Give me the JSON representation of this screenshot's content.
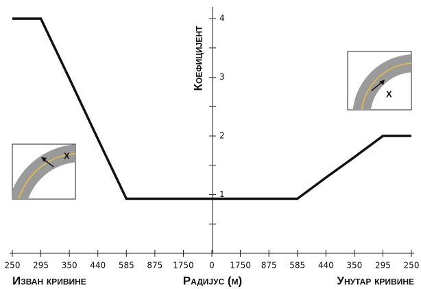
{
  "chart_data": {
    "type": "line",
    "y_label": "Коефицијент",
    "x_label": "Радијус (м)",
    "left_label": "Изван кривине",
    "right_label": "Унутар кривине",
    "categories": [
      "250",
      "295",
      "350",
      "440",
      "585",
      "875",
      "1750",
      "0",
      "1750",
      "875",
      "585",
      "440",
      "350",
      "295",
      "250"
    ],
    "series": [
      {
        "name": "Коефицијент",
        "color": "#111111",
        "values": [
          4,
          4,
          2.98,
          1.95,
          0.93,
          0.93,
          0.93,
          0.93,
          0.93,
          0.93,
          0.93,
          1.29,
          1.64,
          2,
          2
        ]
      }
    ],
    "ylim": [
      0,
      4.2
    ],
    "yticks": [
      1,
      2,
      3,
      4
    ],
    "yminorticks": [
      0.5,
      1.5,
      2.5,
      3.5
    ],
    "inset_left_label": "X",
    "inset_right_label": "X"
  }
}
